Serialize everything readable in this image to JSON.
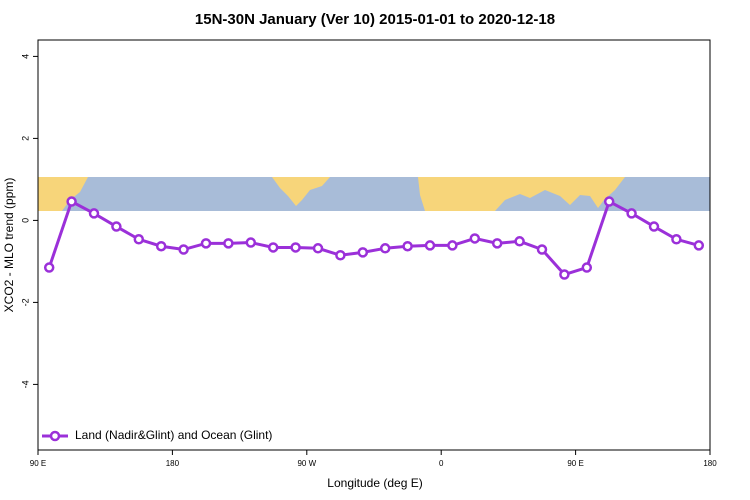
{
  "chart_data": {
    "type": "line",
    "title": "15N-30N January (Ver 10)   2015-01-01 to 2020-12-18",
    "xlabel": "Longitude (deg E)",
    "ylabel": "XCO2 - MLO trend (ppm)",
    "x": [
      97.5,
      112.5,
      127.5,
      142.5,
      157.5,
      172.5,
      187.5,
      202.5,
      217.5,
      232.5,
      247.5,
      262.5,
      277.5,
      292.5,
      307.5,
      322.5,
      337.5,
      352.5,
      367.5,
      382.5,
      397.5,
      412.5,
      427.5,
      442.5,
      457.5,
      472.5,
      487.5,
      502.5,
      517.5,
      532.5
    ],
    "series": [
      {
        "name": "Land (Nadir&Glint) and Ocean (Glint)",
        "color": "#9b30d9",
        "values": [
          -1.15,
          0.46,
          0.17,
          -0.15,
          -0.46,
          -0.63,
          -0.71,
          -0.56,
          -0.56,
          -0.54,
          -0.66,
          -0.66,
          -0.68,
          -0.85,
          -0.78,
          -0.68,
          -0.63,
          -0.61,
          -0.61,
          -0.44,
          -0.56,
          -0.51,
          -0.71,
          -1.32,
          -1.15,
          0.46,
          0.17,
          -0.15,
          -0.46,
          -0.61
        ]
      }
    ],
    "xlim": [
      90,
      540
    ],
    "xticks": [
      {
        "value": 90,
        "label": "90 E"
      },
      {
        "value": 180,
        "label": "180"
      },
      {
        "value": 270,
        "label": "90 W"
      },
      {
        "value": 360,
        "label": "0"
      },
      {
        "value": 450,
        "label": "90 E"
      },
      {
        "value": 540,
        "label": "180"
      }
    ],
    "ylim": [
      -5.6,
      4.4
    ],
    "yticks": [
      4,
      2,
      0,
      -2,
      -4
    ],
    "legend": "bottom-left"
  }
}
